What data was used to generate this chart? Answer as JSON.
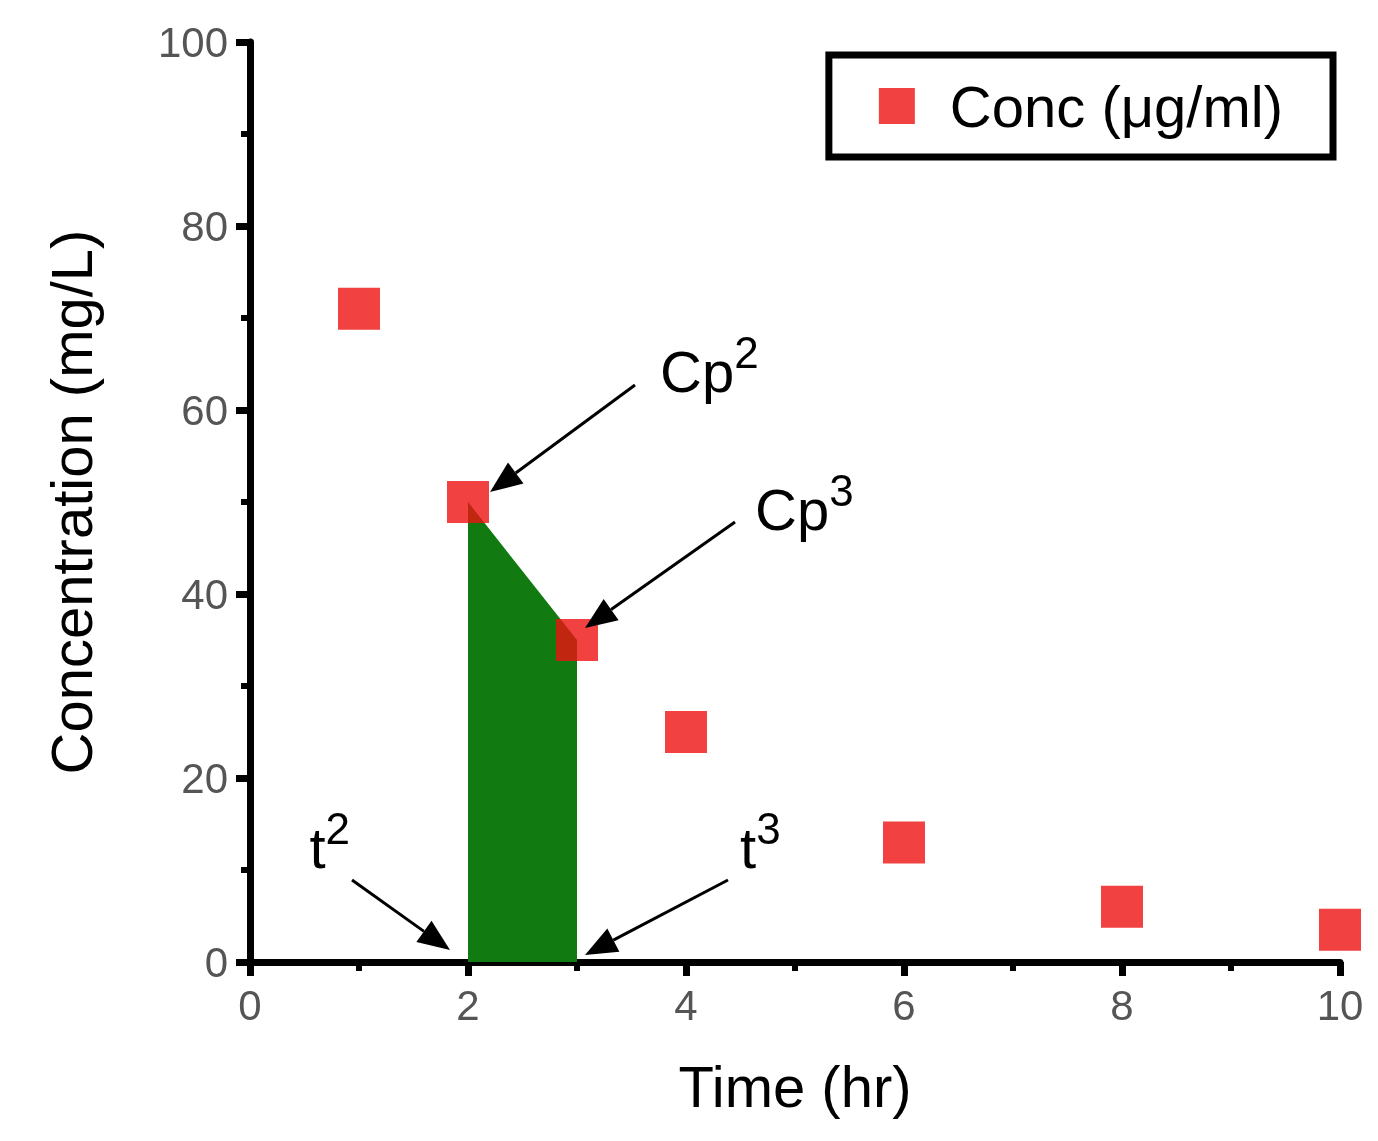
{
  "chart_data": {
    "type": "scatter",
    "xlabel": "Time (hr)",
    "ylabel": "Concentration (mg/L)",
    "xlim": [
      0,
      10
    ],
    "xticks": [
      0,
      2,
      4,
      6,
      8,
      10
    ],
    "ylim": [
      0,
      100
    ],
    "yticks": [
      0,
      20,
      40,
      60,
      80,
      100
    ],
    "grid": false,
    "legend": "top right",
    "marker": "square",
    "series": [
      {
        "type": "scatter",
        "name": "Conc (μg/ml)",
        "color": "#ee1111",
        "x": [
          1,
          2,
          3,
          4,
          6,
          8,
          10
        ],
        "values": [
          71,
          50,
          35,
          25,
          13,
          6,
          3.5
        ]
      },
      {
        "type": "area",
        "color": "#117a11",
        "marker": "none",
        "x": [
          2,
          3
        ],
        "values": [
          50,
          35
        ]
      }
    ],
    "annotations": [
      "Cp$^{2}$",
      "Cp$^{3}$",
      "t$^{2}$",
      "t$^{3}$"
    ]
  }
}
